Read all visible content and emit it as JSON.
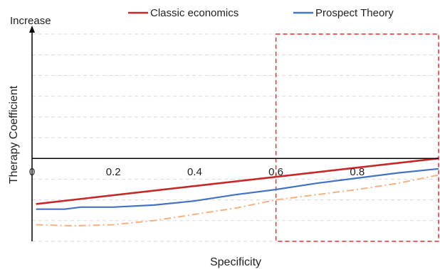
{
  "chart_data": {
    "type": "line",
    "xlabel": "Specificity",
    "ylabel": "Therapy Coefficient",
    "y_axis_top_label": "Increase",
    "xlim": [
      0,
      1
    ],
    "ylim": [
      -0.4,
      0.6
    ],
    "x_ticks": [
      0,
      0.2,
      0.4,
      0.6,
      0.8,
      1.0
    ],
    "x_tick_labels": [
      "0",
      "0.2",
      "0.4",
      "0.6",
      "0.8"
    ],
    "grid": "horizontal dashed",
    "legend": {
      "placement": "top"
    },
    "highlight_region": {
      "x_start": 0.6,
      "x_end": 1.0,
      "y_start": -0.4,
      "y_end": 0.6,
      "style": "red dashed box"
    },
    "series": [
      {
        "name": "Classic economics",
        "color": "#c62828",
        "style": "solid",
        "x": [
          0.01,
          1.0
        ],
        "y": [
          -0.22,
          0.0
        ]
      },
      {
        "name": "Prospect Theory",
        "color": "#4472c4",
        "style": "solid",
        "x": [
          0.01,
          0.08,
          0.12,
          0.2,
          0.3,
          0.4,
          0.5,
          0.6,
          0.7,
          0.8,
          0.9,
          1.0
        ],
        "y": [
          -0.245,
          -0.245,
          -0.235,
          -0.235,
          -0.225,
          -0.205,
          -0.175,
          -0.15,
          -0.12,
          -0.095,
          -0.07,
          -0.05
        ]
      },
      {
        "name": "",
        "color": "#f4b183",
        "style": "dash-dot",
        "x": [
          0.01,
          0.1,
          0.2,
          0.3,
          0.4,
          0.5,
          0.6,
          0.7,
          0.8,
          0.9,
          1.0
        ],
        "y": [
          -0.32,
          -0.325,
          -0.32,
          -0.3,
          -0.27,
          -0.24,
          -0.2,
          -0.175,
          -0.15,
          -0.12,
          -0.08
        ]
      }
    ]
  }
}
